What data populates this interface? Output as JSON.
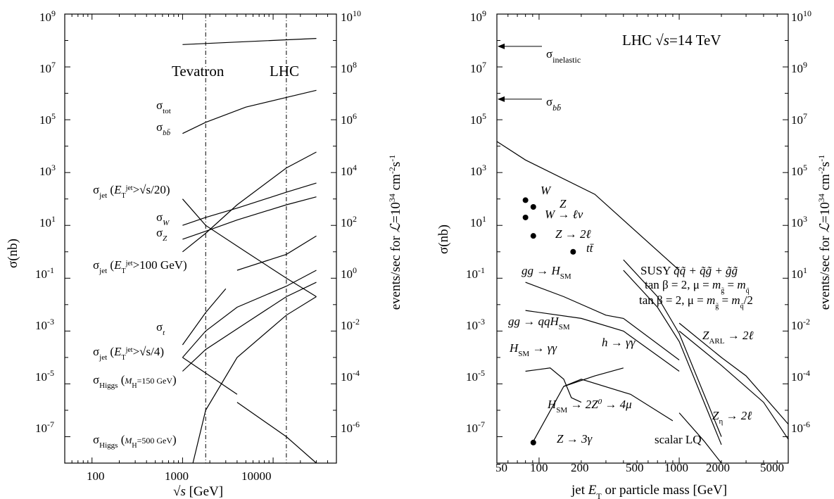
{
  "chart_data": [
    {
      "type": "line",
      "xlabel": "√s [GeV]",
      "ylabel": "σ(nb)",
      "y2label": "events/sec for ℒ=10³⁴ cm⁻²s⁻¹",
      "xscale": "log",
      "yscale": "log",
      "xlim": [
        50,
        50000
      ],
      "ylim": [
        1e-08,
        1000000000.0
      ],
      "y2lim": [
        1e-07,
        10000000000.0
      ],
      "xticks": [
        "100",
        "1000",
        "10000"
      ],
      "yticks": [
        "10^-7",
        "10^-5",
        "10^-3",
        "10^-1",
        "10^1",
        "10^3",
        "10^5",
        "10^7",
        "10^9"
      ],
      "y2ticks": [
        "10^-6",
        "10^-4",
        "10^-2",
        "10^0",
        "10^2",
        "10^4",
        "10^6",
        "10^8",
        "10^10"
      ],
      "vlines": [
        {
          "label": "Tevatron",
          "x": 1800
        },
        {
          "label": "LHC",
          "x": 14000
        }
      ],
      "series": [
        {
          "name": "σtot",
          "x": [
            1000,
            5000,
            30000
          ],
          "y": [
            70000000.0,
            90000000.0,
            120000000.0
          ]
        },
        {
          "name": "σbb̄",
          "x": [
            1000,
            1800,
            5000,
            14000,
            30000
          ],
          "y": [
            30000.0,
            80000.0,
            300000.0,
            700000.0,
            1300000.0
          ]
        },
        {
          "name": "σjet (ET jet > √s/20)",
          "x": [
            1000,
            1800,
            4000,
            14000,
            30000
          ],
          "y": [
            1,
            5,
            60,
            1500,
            6000
          ]
        },
        {
          "name": "σW",
          "x": [
            1000,
            1800,
            4000,
            14000,
            30000
          ],
          "y": [
            10,
            20,
            45,
            180,
            400
          ]
        },
        {
          "name": "σZ",
          "x": [
            1000,
            1800,
            4000,
            14000,
            30000
          ],
          "y": [
            3,
            6,
            16,
            60,
            120
          ]
        },
        {
          "name": "σjet (ET jet > 100 GeV)",
          "x": [
            1000,
            1800,
            5000,
            14000,
            30000
          ],
          "y": [
            100,
            10,
            1,
            0.1,
            0.02
          ]
        },
        {
          "name": "σt (low)",
          "x": [
            1000,
            1800,
            3000
          ],
          "y": [
            0.0003,
            0.005,
            0.04
          ]
        },
        {
          "name": "σt (high)",
          "x": [
            4000,
            14000,
            30000
          ],
          "y": [
            0.2,
            0.8,
            4
          ]
        },
        {
          "name": "σjet (ET jet > √s/4)",
          "x": [
            1000,
            1800,
            4000,
            14000,
            30000
          ],
          "y": [
            0.0001,
            0.001,
            0.008,
            0.05,
            0.2
          ]
        },
        {
          "name": "σHiggs (MH=150 GeV)",
          "x": [
            1000,
            1800,
            5000,
            14000,
            30000
          ],
          "y": [
            3e-05,
            0.0002,
            0.002,
            0.02,
            0.07
          ]
        },
        {
          "name": "σHiggs (MH=500 GeV) rise",
          "x": [
            1300,
            1800,
            4000,
            14000,
            30000
          ],
          "y": [
            1e-08,
            1e-06,
            0.0001,
            0.004,
            0.02
          ]
        },
        {
          "name": "σjet √s/4 falling (low)",
          "x": [
            1000,
            4000
          ],
          "y": [
            0.0001,
            4e-06
          ]
        },
        {
          "name": "σjet √s/4 falling (high)",
          "x": [
            4000,
            14000,
            30000
          ],
          "y": [
            2e-06,
            1e-07,
            1e-08
          ]
        }
      ]
    },
    {
      "type": "line",
      "title": "LHC √s=14 TeV",
      "xlabel": "jet ET or particle mass [GeV]",
      "ylabel": "σ(nb)",
      "y2label": "events/sec for ℒ=10³⁴ cm⁻²s⁻¹",
      "xscale": "log",
      "yscale": "log",
      "xlim": [
        50,
        6000
      ],
      "ylim": [
        1e-08,
        1000000000.0
      ],
      "y2lim": [
        1e-07,
        10000000000.0
      ],
      "xticks": [
        "50",
        "100",
        "200",
        "500",
        "1000",
        "2000",
        "5000"
      ],
      "yticks": [
        "10^-7",
        "10^-5",
        "10^-3",
        "10^-1",
        "10^1",
        "10^3",
        "10^5",
        "10^7",
        "10^9"
      ],
      "y2ticks": [
        "10^-6",
        "10^-4",
        "10^-2",
        "10^0",
        "10^2",
        "10^4",
        "10^6",
        "10^8",
        "10^10"
      ],
      "arrows": [
        {
          "label": "σinelastic",
          "y": 60000000.0
        },
        {
          "label": "σbb̄",
          "y": 600000.0
        }
      ],
      "points": [
        {
          "label": "W",
          "x": 80,
          "y": 90
        },
        {
          "label": "Z",
          "x": 91,
          "y": 50
        },
        {
          "label": "W → ℓν",
          "x": 80,
          "y": 20
        },
        {
          "label": "Z → 2ℓ",
          "x": 91,
          "y": 4
        },
        {
          "label": "tt̄",
          "x": 175,
          "y": 1
        },
        {
          "label": "Z → 3γ",
          "x": 91,
          "y": 6e-08
        }
      ],
      "series": [
        {
          "name": "jet",
          "x": [
            50,
            80,
            250,
            1000
          ],
          "y": [
            15000,
            3000,
            150,
            0.2
          ]
        },
        {
          "name": "gg → H_SM",
          "x": [
            80,
            150,
            300,
            400,
            1000
          ],
          "y": [
            0.07,
            0.02,
            0.004,
            0.003,
            8e-05
          ]
        },
        {
          "name": "gg → qqH_SM",
          "x": [
            80,
            200,
            400,
            1000
          ],
          "y": [
            0.006,
            0.003,
            0.001,
            3e-05
          ]
        },
        {
          "name": "H_SM → γγ",
          "x": [
            80,
            120,
            150,
            170,
            200
          ],
          "y": [
            3e-05,
            4e-05,
            1.5e-05,
            3e-06,
            2e-06
          ]
        },
        {
          "name": "h → γγ",
          "x": [
            150,
            250,
            400
          ],
          "y": [
            8e-06,
            2e-05,
            4e-05
          ]
        },
        {
          "name": "H_SM → 2Z0 → 4μ",
          "x": [
            90,
            150,
            200,
            450,
            900
          ],
          "y": [
            6e-08,
            8e-06,
            1.5e-05,
            4e-06,
            4e-07
          ]
        },
        {
          "name": "SUSY q̃q̃ + q̃g̃ + g̃g̃ (tanβ = 2, μ = m_g̃ = m_q̃)",
          "x": [
            400,
            700,
            1000,
            2000
          ],
          "y": [
            0.5,
            0.02,
            0.0008,
            1e-07
          ]
        },
        {
          "name": "SUSY q̃q̃ + q̃g̃ + g̃g̃ (tanβ = 2, μ = m_g̃ = m_q̃/2)",
          "x": [
            400,
            700,
            1000,
            2000
          ],
          "y": [
            0.2,
            0.008,
            0.0004,
            5e-08
          ]
        },
        {
          "name": "Z_ARL → 2ℓ",
          "x": [
            1000,
            2000,
            3000,
            6000
          ],
          "y": [
            0.002,
            0.0001,
            2e-05,
            3e-07
          ]
        },
        {
          "name": "Z_η → 2ℓ",
          "x": [
            1000,
            2000,
            4000,
            6000
          ],
          "y": [
            0.001,
            5e-05,
            2e-06,
            8e-08
          ]
        },
        {
          "name": "scalar LQ",
          "x": [
            1000,
            1500,
            2000
          ],
          "y": [
            8e-07,
            7e-08,
            1e-08
          ]
        }
      ]
    }
  ]
}
